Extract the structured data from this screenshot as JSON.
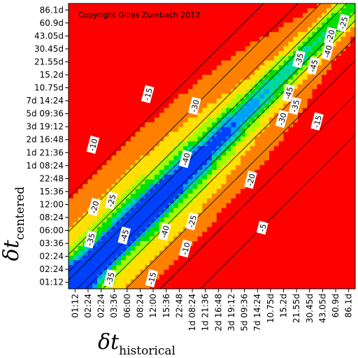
{
  "chart_data": {
    "type": "heatmap",
    "copyright": "Copyright Gilles Zumbach 2012",
    "xlabel": {
      "symbol": "δt",
      "subscript": "historical"
    },
    "ylabel": {
      "symbol": "δt",
      "subscript": "centered"
    },
    "x_ticks": [
      "01:12",
      "02:24",
      "02:24",
      "03:36",
      "06:00",
      "08:24",
      "12:00",
      "15:36",
      "22:48",
      "1d 08:24",
      "1d 21:36",
      "2d 16:48",
      "3d 19:12",
      "5d 09:36",
      "7d 14:24",
      "10.75d",
      "15.2d",
      "21.55d",
      "30.45d",
      "43.05d",
      "60.9d",
      "86.1d"
    ],
    "y_ticks": [
      "01:12",
      "02:24",
      "02:24",
      "03:36",
      "06:00",
      "08:24",
      "12:00",
      "15:36",
      "22:48",
      "1d 08:24",
      "1d 21:36",
      "2d 16:48",
      "3d 19:12",
      "5d 09:36",
      "7d 14:24",
      "10.75d",
      "15.2d",
      "21.55d",
      "30.45d",
      "43.05d",
      "60.9d",
      "86.1d"
    ],
    "colorscale": [
      "#ff0000",
      "#ff8000",
      "#ffe000",
      "#a0ff00",
      "#00e000",
      "#00d8a0",
      "#00a0ff",
      "#0040ff"
    ],
    "contour_labels": [
      {
        "text": "-20",
        "i": 19.6,
        "j": 19.0
      },
      {
        "text": "-25",
        "i": 20.6,
        "j": 20.0
      },
      {
        "text": "-40",
        "i": 19.4,
        "j": 17.8
      },
      {
        "text": "-35",
        "i": 17.2,
        "j": 17.2
      },
      {
        "text": "-45",
        "i": 18.3,
        "j": 16.7
      },
      {
        "text": "-15",
        "i": 5.6,
        "j": 14.5
      },
      {
        "text": "-30",
        "i": 9.2,
        "j": 13.6
      },
      {
        "text": "-45",
        "i": 16.4,
        "j": 14.6
      },
      {
        "text": "-35",
        "i": 16.9,
        "j": 13.6
      },
      {
        "text": "-30",
        "i": 15.9,
        "j": 12.6
      },
      {
        "text": "-15",
        "i": 18.6,
        "j": 12.4
      },
      {
        "text": "-10",
        "i": 1.4,
        "j": 10.6
      },
      {
        "text": "-40",
        "i": 8.5,
        "j": 9.5
      },
      {
        "text": "-20",
        "i": 13.5,
        "j": 7.9
      },
      {
        "text": "-20",
        "i": 1.5,
        "j": 5.8
      },
      {
        "text": "-25",
        "i": 2.8,
        "j": 6.3
      },
      {
        "text": "-25",
        "i": 9.0,
        "j": 4.7
      },
      {
        "text": "-5",
        "i": 14.4,
        "j": 4.2
      },
      {
        "text": "-35",
        "i": 1.2,
        "j": 3.3
      },
      {
        "text": "-45",
        "i": 3.8,
        "j": 3.6
      },
      {
        "text": "-40",
        "i": 6.9,
        "j": 3.9
      },
      {
        "text": "-10",
        "i": 8.5,
        "j": 2.6
      },
      {
        "text": "-35",
        "i": 2.7,
        "j": 0.3
      },
      {
        "text": "-15",
        "i": 5.9,
        "j": 0.3
      }
    ]
  }
}
